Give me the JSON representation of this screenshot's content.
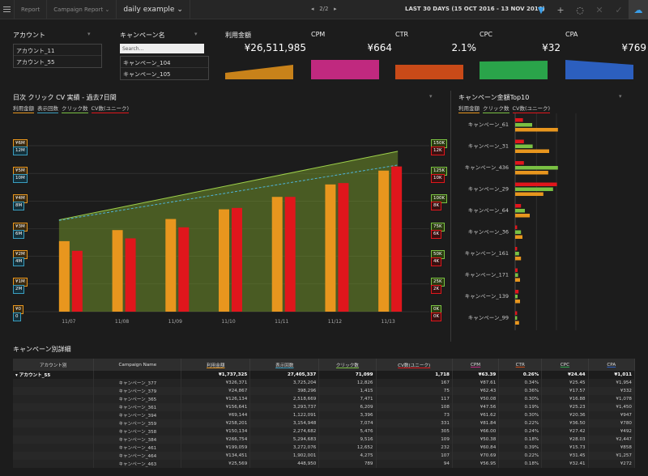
{
  "topbar": {
    "crumbs": [
      "Report",
      "Campaign Report",
      "daily example"
    ],
    "pager": "2/2",
    "range": "LAST 30 DAYS (15 OCT 2016 - 13 NOV 2016)"
  },
  "filters": {
    "account": {
      "title": "アカウント",
      "items": [
        "アカウント_11",
        "アカウント_55"
      ]
    },
    "campaign": {
      "title": "キャンペーン名",
      "placeholder": "Search...",
      "items": [
        "キャンペーン_104",
        "キャンペーン_105"
      ]
    }
  },
  "kpis": [
    {
      "title": "利用金額",
      "value": "¥26,511,985",
      "color": "#c8821a"
    },
    {
      "title": "CPM",
      "value": "¥664",
      "color": "#c0297f"
    },
    {
      "title": "CTR",
      "value": "2.1%",
      "color": "#c94a18"
    },
    {
      "title": "CPC",
      "value": "¥32",
      "color": "#2aa44a"
    },
    {
      "title": "CPA",
      "value": "¥769",
      "color": "#2c5fbf"
    }
  ],
  "combo": {
    "title": "日次 クリック CV 実績 - 過去7日間",
    "legend": [
      "利用金額",
      "表示回数",
      "クリック数",
      "CV数(ユニーク)"
    ],
    "legend_colors": [
      "#e8961e",
      "#3a9ec0",
      "#7ac143",
      "#e0161c"
    ],
    "left_ticks_yen": [
      "¥6M",
      "¥5M",
      "¥4M",
      "¥3M",
      "¥2M",
      "¥1M",
      "¥0"
    ],
    "left_ticks_imp": [
      "12M",
      "10M",
      "8M",
      "6M",
      "4M",
      "2M",
      "0"
    ],
    "right_ticks_click": [
      "150K",
      "125K",
      "100K",
      "75K",
      "50K",
      "25K",
      "0K"
    ],
    "right_ticks_cv": [
      "12K",
      "10K",
      "8K",
      "6K",
      "4K",
      "2K",
      "0K"
    ]
  },
  "top10": {
    "title": "キャンペーン金額Top10",
    "legend": [
      "利用金額",
      "クリック数",
      "CV数(ユニーク)"
    ],
    "legend_colors": [
      "#e8961e",
      "#7ac143",
      "#e0161c"
    ]
  },
  "table": {
    "title": "キャンペーン別詳細",
    "headers": [
      "アカウント別",
      "Campaign Name",
      "利用金額",
      "表示回数",
      "クリック数",
      "CV数(ユニーク)",
      "CPM",
      "CTR",
      "CPC",
      "CPA"
    ],
    "header_colors": [
      "",
      "",
      "#e8961e",
      "#3a9ec0",
      "#7ac143",
      "#e0161c",
      "#c0297f",
      "#c94a18",
      "#2aa44a",
      "#2c5fbf"
    ],
    "summary": [
      "アカウント_55",
      "",
      "¥1,737,325",
      "27,405,337",
      "71,099",
      "1,718",
      "¥63.39",
      "0.26%",
      "¥24.44",
      "¥1,011"
    ],
    "rows": [
      [
        "",
        "キャンペーン_377",
        "¥326,371",
        "3,725,204",
        "12,826",
        "167",
        "¥87.61",
        "0.34%",
        "¥25.45",
        "¥1,954"
      ],
      [
        "",
        "キャンペーン_379",
        "¥24,867",
        "398,296",
        "1,415",
        "75",
        "¥62.43",
        "0.36%",
        "¥17.57",
        "¥332"
      ],
      [
        "",
        "キャンペーン_365",
        "¥126,134",
        "2,518,669",
        "7,471",
        "117",
        "¥50.08",
        "0.30%",
        "¥16.88",
        "¥1,078"
      ],
      [
        "",
        "キャンペーン_361",
        "¥156,641",
        "3,293,737",
        "6,209",
        "108",
        "¥47.56",
        "0.19%",
        "¥25.23",
        "¥1,450"
      ],
      [
        "",
        "キャンペーン_394",
        "¥69,144",
        "1,122,091",
        "3,396",
        "73",
        "¥61.62",
        "0.30%",
        "¥20.36",
        "¥947"
      ],
      [
        "",
        "キャンペーン_359",
        "¥258,201",
        "3,154,948",
        "7,074",
        "331",
        "¥81.84",
        "0.22%",
        "¥36.50",
        "¥780"
      ],
      [
        "",
        "キャンペーン_358",
        "¥150,134",
        "2,274,682",
        "5,476",
        "305",
        "¥66.00",
        "0.24%",
        "¥27.42",
        "¥492"
      ],
      [
        "",
        "キャンペーン_384",
        "¥266,754",
        "5,294,683",
        "9,516",
        "109",
        "¥50.38",
        "0.18%",
        "¥28.03",
        "¥2,447"
      ],
      [
        "",
        "キャンペーン_461",
        "¥199,059",
        "3,272,076",
        "12,652",
        "232",
        "¥60.84",
        "0.39%",
        "¥15.73",
        "¥858"
      ],
      [
        "",
        "キャンペーン_464",
        "¥134,451",
        "1,902,001",
        "4,275",
        "107",
        "¥70.69",
        "0.22%",
        "¥31.45",
        "¥1,257"
      ],
      [
        "",
        "キャンペーン_463",
        "¥25,569",
        "448,950",
        "789",
        "94",
        "¥56.95",
        "0.18%",
        "¥32.41",
        "¥272"
      ]
    ]
  },
  "chart_data": [
    {
      "type": "bar",
      "title": "日次 クリック CV 実績 - 過去7日間",
      "categories": [
        "11/07",
        "11/08",
        "11/09",
        "11/10",
        "11/11",
        "11/12",
        "11/13"
      ],
      "series": [
        {
          "name": "利用金額",
          "values": [
            2.55,
            2.95,
            3.35,
            3.7,
            4.15,
            4.6,
            5.1
          ]
        },
        {
          "name": "CV数(ユニーク)",
          "values": [
            4.4,
            5.3,
            6.1,
            7.5,
            8.3,
            9.3,
            10.5
          ]
        },
        {
          "name": "表示回数",
          "values": [
            6.6,
            7.25,
            7.9,
            8.6,
            9.25,
            9.9,
            10.6
          ]
        },
        {
          "name": "クリック数",
          "values": [
            83,
            93,
            104,
            114,
            124,
            135,
            145
          ]
        }
      ]
    },
    {
      "type": "bar",
      "title": "キャンペーン金額Top10",
      "categories": [
        "キャンペーン_61",
        "キャンペーン_31",
        "キャンペーン_436",
        "キャンペーン_29",
        "キャンペーン_64",
        "キャンペーン_36",
        "キャンペーン_161",
        "キャンペーン_171",
        "キャンペーン_139",
        "キャンペーン_99"
      ],
      "series": [
        {
          "name": "CV数(ユニーク)",
          "values": [
            0.16,
            0.18,
            0.18,
            0.86,
            0.12,
            0.04,
            0.04,
            0.05,
            0.07,
            0.04
          ]
        },
        {
          "name": "クリック数",
          "values": [
            0.35,
            0.36,
            0.88,
            0.78,
            0.2,
            0.12,
            0.08,
            0.06,
            0.05,
            0.04
          ]
        },
        {
          "name": "利用金額",
          "values": [
            0.88,
            0.7,
            0.68,
            0.58,
            0.3,
            0.15,
            0.12,
            0.1,
            0.1,
            0.08
          ]
        }
      ]
    }
  ]
}
